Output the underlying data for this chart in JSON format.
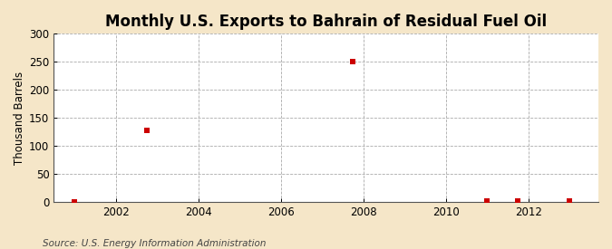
{
  "title": "Monthly U.S. Exports to Bahrain of Residual Fuel Oil",
  "ylabel": "Thousand Barrels",
  "source_text": "Source: U.S. Energy Information Administration",
  "background_color": "#f5e6c8",
  "plot_bg_color": "#ffffff",
  "grid_color": "#aaaaaa",
  "point_color": "#cc0000",
  "data_x": [
    2001.0,
    2002.75,
    2007.75,
    2011.0,
    2011.75,
    2013.0
  ],
  "data_y": [
    0,
    128,
    250,
    2,
    2,
    2
  ],
  "xlim": [
    2000.5,
    2013.7
  ],
  "ylim": [
    0,
    300
  ],
  "xticks": [
    2002,
    2004,
    2006,
    2008,
    2010,
    2012
  ],
  "yticks": [
    0,
    50,
    100,
    150,
    200,
    250,
    300
  ],
  "title_fontsize": 12,
  "axis_label_fontsize": 8.5,
  "tick_fontsize": 8.5,
  "source_fontsize": 7.5,
  "marker_size": 5
}
